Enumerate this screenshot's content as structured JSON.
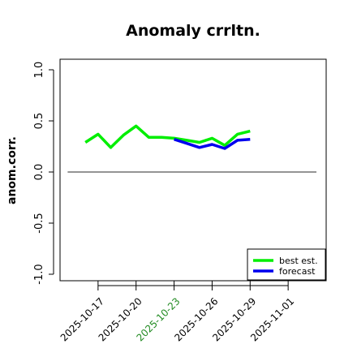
{
  "chart_data": {
    "type": "line",
    "title": "Anomaly crrltn.",
    "ylabel": "anom.corr.",
    "xlabel": "",
    "ylim": [
      -1.0,
      1.0
    ],
    "yticks": [
      -1.0,
      -0.5,
      0.0,
      0.5,
      1.0
    ],
    "ytick_labels": [
      "-1.0",
      "-0.5",
      "0.0",
      "0.5",
      "1.0"
    ],
    "xlim": [
      "2025-10-14",
      "2025-11-04"
    ],
    "xticks": [
      "2025-10-17",
      "2025-10-20",
      "2025-10-23",
      "2025-10-26",
      "2025-10-29",
      "2025-11-01"
    ],
    "xtick_colors": [
      "#000000",
      "#000000",
      "#228b22",
      "#000000",
      "#000000",
      "#000000"
    ],
    "reference_line": 0.0,
    "legend_position": "bottom-right",
    "series": [
      {
        "name": "best est.",
        "color": "#00ee00",
        "x": [
          "2025-10-16",
          "2025-10-17",
          "2025-10-18",
          "2025-10-19",
          "2025-10-20",
          "2025-10-21",
          "2025-10-22",
          "2025-10-23",
          "2025-10-24",
          "2025-10-25",
          "2025-10-26",
          "2025-10-27",
          "2025-10-28",
          "2025-10-29"
        ],
        "values": [
          0.29,
          0.37,
          0.24,
          0.36,
          0.45,
          0.34,
          0.34,
          0.33,
          0.31,
          0.29,
          0.33,
          0.26,
          0.37,
          0.4
        ]
      },
      {
        "name": "forecast",
        "color": "#0000ee",
        "x": [
          "2025-10-23",
          "2025-10-24",
          "2025-10-25",
          "2025-10-26",
          "2025-10-27",
          "2025-10-28",
          "2025-10-29"
        ],
        "values": [
          0.32,
          0.28,
          0.24,
          0.27,
          0.23,
          0.31,
          0.32
        ]
      }
    ]
  }
}
